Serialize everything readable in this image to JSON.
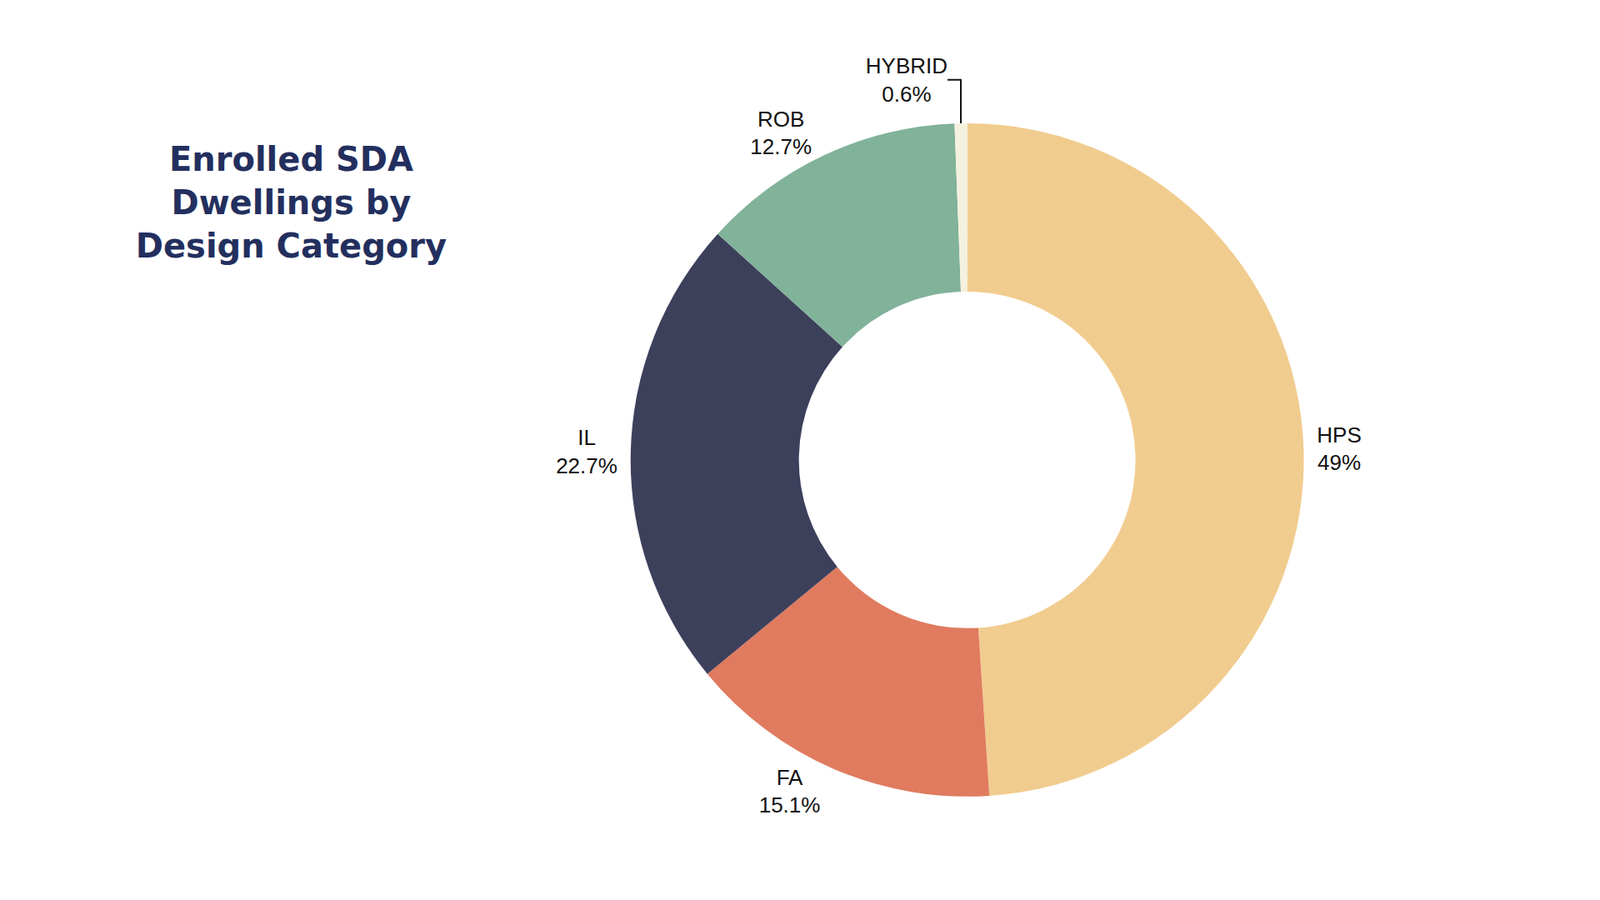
{
  "chart_data": {
    "type": "pie",
    "title": "Enrolled SDA Dwellings by Design Category",
    "categories": [
      "HPS",
      "FA",
      "IL",
      "ROB",
      "HYBRID"
    ],
    "values": [
      49,
      15.1,
      22.7,
      12.7,
      0.6
    ],
    "value_labels": [
      "49%",
      "15.1%",
      "22.7%",
      "12.7%",
      "0.6%"
    ],
    "colors": [
      "#f1cc8f",
      "#e07b5f",
      "#3d405b",
      "#81b29a",
      "#f4f1de"
    ],
    "data_labels": true
  }
}
